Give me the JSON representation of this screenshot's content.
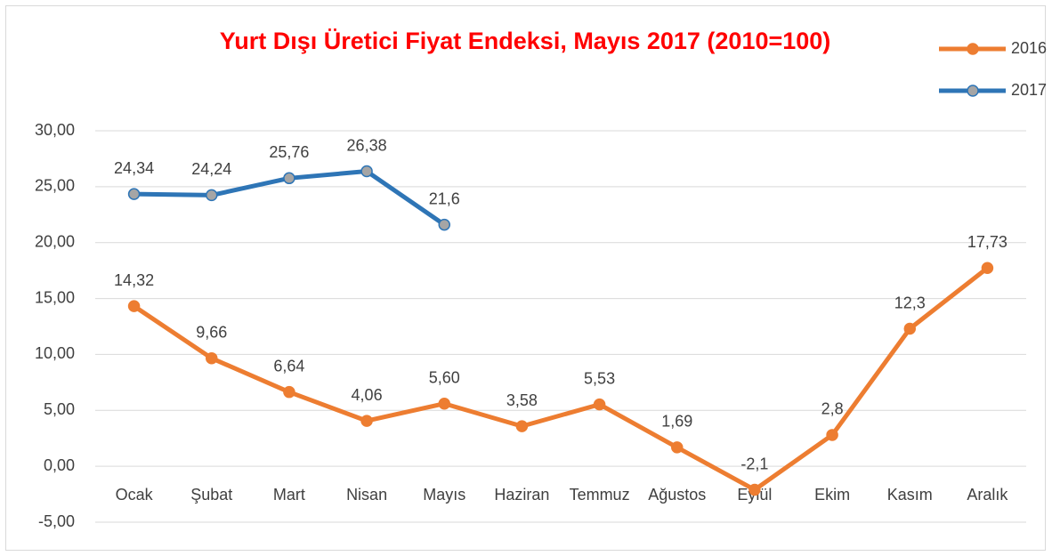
{
  "chart_data": {
    "type": "line",
    "title": "Yurt Dışı Üretici Fiyat Endeksi, Mayıs 2017 (2010=100)",
    "categories": [
      "Ocak",
      "Şubat",
      "Mart",
      "Nisan",
      "Mayıs",
      "Haziran",
      "Temmuz",
      "Ağustos",
      "Eylül",
      "Ekim",
      "Kasım",
      "Aralık"
    ],
    "series": [
      {
        "name": "2016",
        "color": "#ed7d31",
        "marker_color": "#ed7d31",
        "values": [
          14.32,
          9.66,
          6.64,
          4.06,
          5.6,
          3.58,
          5.53,
          1.69,
          -2.1,
          2.8,
          12.3,
          17.73
        ],
        "value_labels": [
          "14,32",
          "9,66",
          "6,64",
          "4,06",
          "5,60",
          "3,58",
          "5,53",
          "1,69",
          "-2,1",
          "2,8",
          "12,3",
          "17,73"
        ]
      },
      {
        "name": "2017",
        "color": "#2e75b6",
        "marker_color": "#a5a5a5",
        "values": [
          24.34,
          24.24,
          25.76,
          26.38,
          21.6,
          null,
          null,
          null,
          null,
          null,
          null,
          null
        ],
        "value_labels": [
          "24,34",
          "24,24",
          "25,76",
          "26,38",
          "21,6",
          null,
          null,
          null,
          null,
          null,
          null,
          null
        ]
      }
    ],
    "ylim": [
      -5,
      30
    ],
    "yticks": [
      {
        "value": -5,
        "label": "-5,00"
      },
      {
        "value": 0,
        "label": "0,00"
      },
      {
        "value": 5,
        "label": "5,00"
      },
      {
        "value": 10,
        "label": "10,00"
      },
      {
        "value": 15,
        "label": "15,00"
      },
      {
        "value": 20,
        "label": "20,00"
      },
      {
        "value": 25,
        "label": "25,00"
      },
      {
        "value": 30,
        "label": "30,00"
      }
    ],
    "grid": true,
    "legend": "top-right"
  }
}
